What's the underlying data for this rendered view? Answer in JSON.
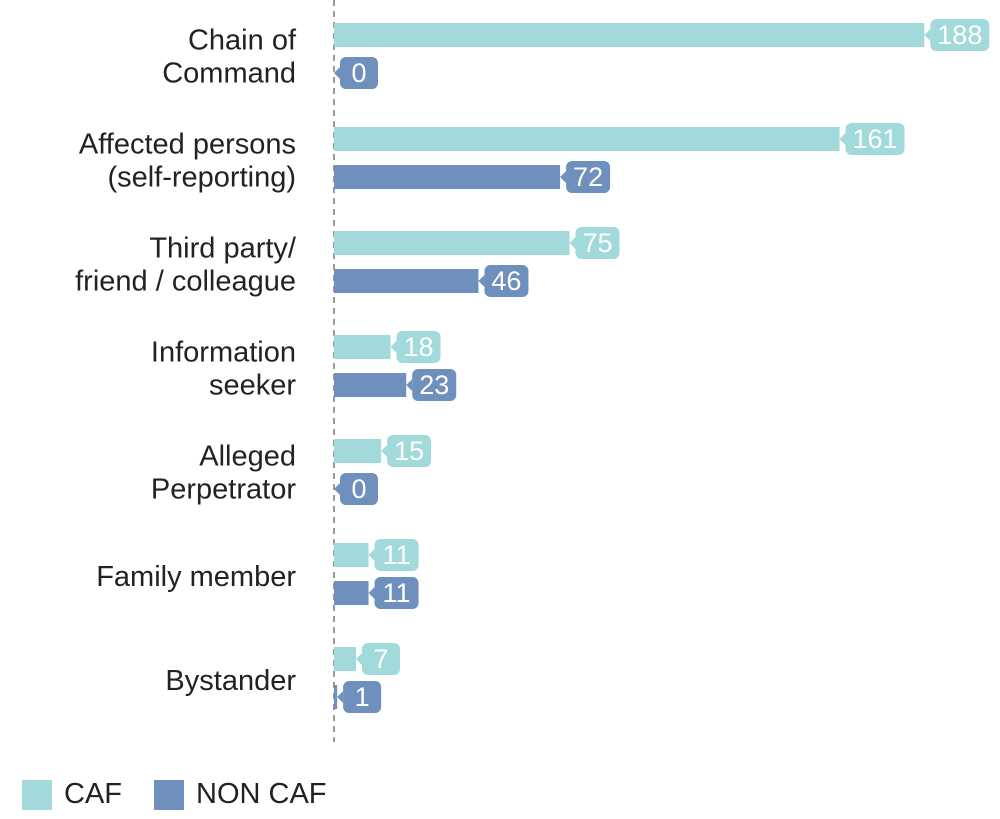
{
  "chart_data": {
    "type": "bar",
    "orientation": "horizontal",
    "categories": [
      [
        "Chain of",
        "Command"
      ],
      [
        "Affected persons",
        "(self-reporting)"
      ],
      [
        "Third party/",
        "friend / colleague"
      ],
      [
        "Information",
        "seeker"
      ],
      [
        "Alleged",
        "Perpetrator"
      ],
      [
        "Family member"
      ],
      [
        "Bystander"
      ]
    ],
    "series": [
      {
        "name": "CAF",
        "color": "#a2d9da",
        "values": [
          188,
          161,
          75,
          18,
          15,
          11,
          7
        ]
      },
      {
        "name": "NON CAF",
        "color": "#6f8fbd",
        "values": [
          0,
          72,
          46,
          23,
          0,
          11,
          1
        ]
      }
    ],
    "xlim": [
      0,
      200
    ],
    "grid": false,
    "data_labels": true,
    "legend_position": "bottom-left"
  },
  "legend": {
    "caf_label": "CAF",
    "noncaf_label": "NON CAF"
  }
}
